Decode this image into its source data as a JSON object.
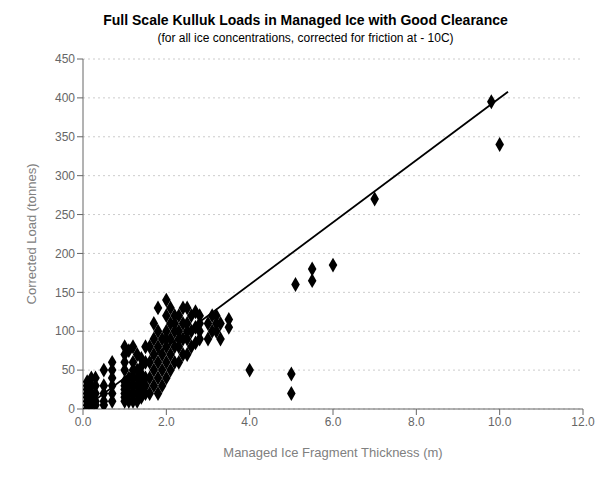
{
  "chart_data": {
    "type": "scatter",
    "title": "Full Scale Kulluk Loads in Managed Ice with Good Clearance",
    "subtitle": "(for all ice concentrations, corrected for friction at - 10C)",
    "x_label": "Managed Ice Fragment Thickness (m)",
    "y_label": "Corrected Load (tonnes)",
    "xlim": [
      0.0,
      12.0
    ],
    "ylim": [
      0,
      450
    ],
    "xticks": [
      {
        "value": 0.0,
        "label": "0.0"
      },
      {
        "value": 2.0,
        "label": "2.0"
      },
      {
        "value": 4.0,
        "label": "4.0"
      },
      {
        "value": 6.0,
        "label": "6.0"
      },
      {
        "value": 8.0,
        "label": "8.0"
      },
      {
        "value": 10.0,
        "label": "10.0"
      },
      {
        "value": 12.0,
        "label": "12.0"
      }
    ],
    "yticks": [
      0,
      50,
      100,
      150,
      200,
      250,
      300,
      350,
      400,
      450
    ],
    "grid": "y",
    "series": [
      {
        "type": "scatter",
        "color": "black",
        "marker": "diamond",
        "x": [
          0.1,
          0.1,
          0.1,
          0.1,
          0.1,
          0.1,
          0.1,
          0.15,
          0.15,
          0.15,
          0.2,
          0.2,
          0.2,
          0.2,
          0.2,
          0.2,
          0.3,
          0.3,
          0.3,
          0.3,
          0.3,
          0.5,
          0.5,
          0.5,
          0.5,
          0.5,
          0.7,
          0.7,
          0.7,
          0.7,
          0.7,
          0.7,
          1.0,
          1.0,
          1.0,
          1.0,
          1.0,
          1.0,
          1.0,
          1.0,
          1.0,
          1.0,
          1.1,
          1.1,
          1.1,
          1.1,
          1.1,
          1.2,
          1.2,
          1.2,
          1.2,
          1.2,
          1.2,
          1.2,
          1.3,
          1.3,
          1.3,
          1.3,
          1.3,
          1.3,
          1.4,
          1.4,
          1.4,
          1.4,
          1.4,
          1.4,
          1.5,
          1.5,
          1.5,
          1.5,
          1.5,
          1.6,
          1.6,
          1.6,
          1.6,
          1.7,
          1.7,
          1.7,
          1.7,
          1.7,
          1.8,
          1.8,
          1.8,
          1.8,
          1.8,
          1.8,
          1.9,
          1.9,
          1.9,
          1.9,
          2.0,
          2.0,
          2.0,
          2.0,
          2.0,
          2.0,
          2.0,
          2.1,
          2.1,
          2.1,
          2.1,
          2.1,
          2.2,
          2.2,
          2.2,
          2.2,
          2.2,
          2.3,
          2.3,
          2.3,
          2.3,
          2.3,
          2.4,
          2.4,
          2.4,
          2.4,
          2.5,
          2.5,
          2.5,
          2.5,
          2.5,
          2.6,
          2.6,
          2.6,
          2.7,
          2.7,
          2.7,
          2.8,
          2.8,
          2.8,
          2.8,
          3.0,
          3.0,
          3.1,
          3.1,
          3.2,
          3.2,
          3.2,
          3.3,
          3.3,
          3.5,
          3.5,
          4.0,
          5.0,
          5.0,
          5.1,
          5.5,
          5.5,
          6.0,
          7.0,
          9.8,
          10.0
        ],
        "values": [
          5,
          10,
          15,
          20,
          25,
          30,
          35,
          5,
          15,
          25,
          5,
          10,
          15,
          20,
          30,
          40,
          5,
          10,
          20,
          30,
          40,
          5,
          10,
          20,
          30,
          50,
          10,
          20,
          30,
          40,
          50,
          60,
          10,
          15,
          20,
          25,
          30,
          35,
          50,
          60,
          70,
          80,
          10,
          20,
          30,
          40,
          75,
          10,
          20,
          30,
          40,
          50,
          60,
          80,
          10,
          20,
          30,
          40,
          50,
          70,
          15,
          25,
          35,
          45,
          55,
          65,
          20,
          30,
          40,
          60,
          80,
          20,
          40,
          60,
          80,
          30,
          50,
          70,
          90,
          110,
          20,
          40,
          60,
          80,
          100,
          130,
          30,
          50,
          70,
          90,
          40,
          60,
          80,
          90,
          100,
          120,
          140,
          50,
          70,
          90,
          110,
          130,
          60,
          80,
          100,
          120,
          110,
          60,
          80,
          100,
          120,
          90,
          70,
          90,
          110,
          130,
          70,
          90,
          110,
          130,
          100,
          80,
          100,
          120,
          85,
          105,
          125,
          90,
          100,
          110,
          120,
          90,
          110,
          100,
          120,
          100,
          110,
          120,
          90,
          110,
          105,
          115,
          50,
          45,
          20,
          160,
          180,
          165,
          185,
          270,
          395,
          340
        ]
      },
      {
        "type": "line",
        "color": "black",
        "x": [
          0.0,
          10.2
        ],
        "values": [
          0.0,
          408.0
        ]
      }
    ]
  }
}
